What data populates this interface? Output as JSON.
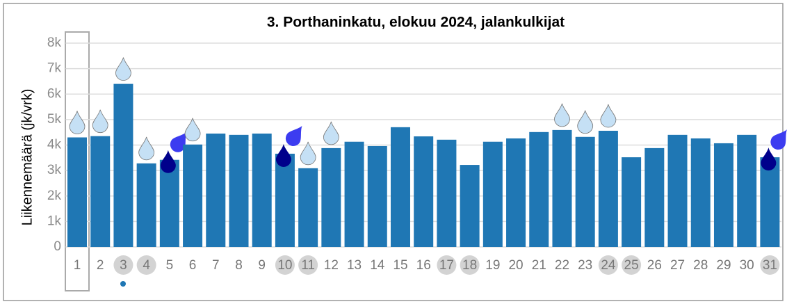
{
  "chart_data": {
    "type": "bar",
    "title": "3. Porthaninkatu, elokuu 2024, jalankulkijat",
    "y_label": "Liikennemäärä (jk/vrk)",
    "categories": [
      "1",
      "2",
      "3",
      "4",
      "5",
      "6",
      "7",
      "8",
      "9",
      "10",
      "11",
      "12",
      "13",
      "14",
      "15",
      "16",
      "17",
      "18",
      "19",
      "20",
      "21",
      "22",
      "23",
      "24",
      "25",
      "26",
      "27",
      "28",
      "29",
      "30",
      "31"
    ],
    "values": [
      4300,
      4350,
      6400,
      3280,
      3420,
      4020,
      4450,
      4400,
      4450,
      3660,
      3090,
      3880,
      4130,
      3960,
      4700,
      4340,
      4210,
      3220,
      4130,
      4260,
      4510,
      4590,
      4320,
      4560,
      3520,
      3880,
      4400,
      4260,
      4070,
      4400,
      3520
    ],
    "color": "#1f77b4",
    "ylim": [
      0,
      8000
    ],
    "yticks": [
      0,
      {
        "value": 1000,
        "label": "1k"
      },
      {
        "value": 2000,
        "label": "2k"
      },
      {
        "value": 3000,
        "label": "3k"
      },
      {
        "value": 4000,
        "label": "4k"
      },
      {
        "value": 5000,
        "label": "5k"
      },
      {
        "value": 6000,
        "label": "6k"
      },
      {
        "value": 7000,
        "label": "7k"
      },
      {
        "value": 8000,
        "label": "8k"
      }
    ],
    "grid": true,
    "drop_colors": [
      [
        "#c5e0f5"
      ],
      [
        "#c5e0f5"
      ],
      [
        "#c5e0f5"
      ],
      [
        "#c5e0f5"
      ],
      [
        "#00008b",
        "#3c3cf0"
      ],
      [
        "#c5e0f5"
      ],
      [],
      [],
      [],
      [
        "#00008b",
        "#3c3cf0"
      ],
      [
        "#c5e0f5"
      ],
      [
        "#c5e0f5"
      ],
      [],
      [],
      [],
      [],
      [],
      [],
      [],
      [],
      [],
      [
        "#c5e0f5"
      ],
      [
        "#c5e0f5"
      ],
      [
        "#c5e0f5"
      ],
      [],
      [],
      [],
      [],
      [],
      [],
      [
        "#00008b",
        "#3c3cf0"
      ]
    ],
    "label_backgrounds": [
      null,
      null,
      "#d3d3d3",
      "#d3d3d3",
      null,
      null,
      null,
      null,
      null,
      "#d3d3d3",
      "#d3d3d3",
      null,
      null,
      null,
      null,
      null,
      "#d3d3d3",
      "#d3d3d3",
      null,
      null,
      null,
      null,
      null,
      "#d3d3d3",
      "#d3d3d3",
      null,
      null,
      null,
      null,
      null,
      "#d3d3d3"
    ]
  }
}
